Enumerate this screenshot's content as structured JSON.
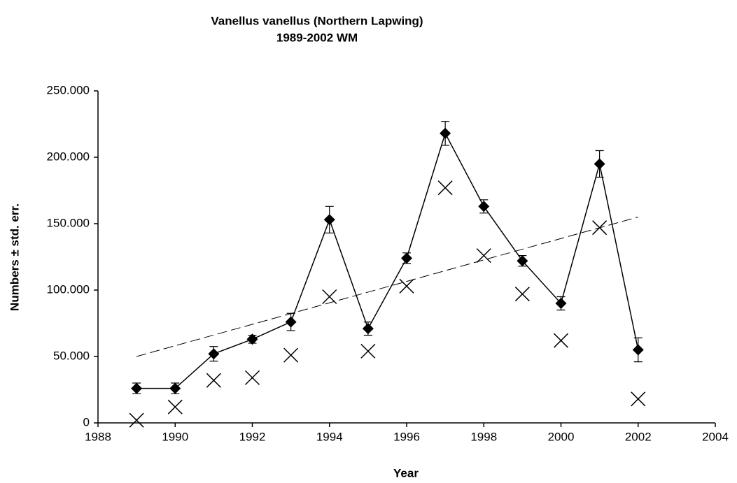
{
  "chart_data": {
    "type": "line",
    "title": "Vanellus vanellus (Northern Lapwing)",
    "subtitle": "1989-2002 WM",
    "xlabel": "Year",
    "ylabel": "Numbers ± std. err.",
    "x": [
      1989,
      1990,
      1991,
      1992,
      1993,
      1994,
      1995,
      1996,
      1997,
      1998,
      1999,
      2000,
      2001,
      2002
    ],
    "xlim": [
      1988,
      2004
    ],
    "xticks": [
      1988,
      1990,
      1992,
      1994,
      1996,
      1998,
      2000,
      2002,
      2004
    ],
    "ylim": [
      0,
      250000
    ],
    "yticks": [
      0,
      {
        "value": 50000,
        "label": "50.000"
      },
      {
        "value": 100000,
        "label": "100.000"
      },
      {
        "value": 150000,
        "label": "150.000"
      },
      {
        "value": 200000,
        "label": "200.000"
      },
      {
        "value": 250000,
        "label": "250.000"
      }
    ],
    "grid": false,
    "series": [
      {
        "color": "#000000",
        "marker": "diamond",
        "line": "solid",
        "values": [
          26000,
          26000,
          52000,
          63000,
          76000,
          153000,
          71000,
          124000,
          218000,
          163000,
          122000,
          90000,
          195000,
          55000
        ],
        "errors": [
          4000,
          4000,
          5500,
          3000,
          6500,
          10000,
          5000,
          4000,
          9000,
          5000,
          4000,
          5000,
          10000,
          9000
        ]
      },
      {
        "color": "#000000",
        "marker": "x",
        "line": "none",
        "values": [
          2000,
          12000,
          32000,
          34000,
          51000,
          95000,
          54000,
          103000,
          177000,
          126000,
          97000,
          62000,
          147000,
          18000
        ]
      },
      {
        "color": "#000000",
        "marker": "none",
        "line": "dashed",
        "x": [
          1989,
          2002
        ],
        "values": [
          50000,
          155000
        ]
      }
    ]
  }
}
